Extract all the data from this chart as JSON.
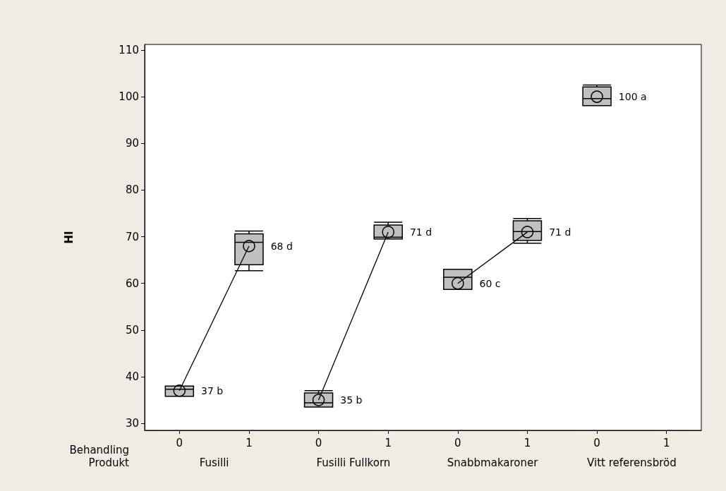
{
  "chart_data": {
    "type": "box",
    "ylabel": "HI",
    "xlabel": "Behandling",
    "categories": [
      "0",
      "1",
      "0",
      "1",
      "0",
      "1",
      "0",
      "1"
    ],
    "annotations": [
      "Produkt",
      "Fusilli",
      "Fusilli Fullkorn",
      "Snabbmakaroner",
      "Vitt referensbröd"
    ],
    "ylim": [
      28.5,
      111.2
    ],
    "yticks": [
      30,
      40,
      50,
      60,
      70,
      80,
      90,
      100,
      110
    ],
    "grid": false,
    "series": [
      {
        "color": "#c0c0c0",
        "boxes": [
          {
            "low": 35.8,
            "q1": 35.8,
            "median": 37.3,
            "q3": 38.0,
            "high": 38.0
          },
          {
            "low": 62.7,
            "q1": 64.0,
            "median": 68.8,
            "q3": 70.6,
            "high": 71.2
          },
          {
            "low": 33.5,
            "q1": 33.5,
            "median": 34.4,
            "q3": 36.5,
            "high": 37.0
          },
          {
            "low": 69.5,
            "q1": 69.5,
            "median": 69.9,
            "q3": 72.5,
            "high": 73.1
          },
          {
            "low": 58.7,
            "q1": 58.7,
            "median": 61.3,
            "q3": 63.0,
            "high": 63.0
          },
          {
            "low": 68.6,
            "q1": 69.2,
            "median": 71.1,
            "q3": 73.4,
            "high": 73.9
          },
          {
            "low": 98.1,
            "q1": 98.1,
            "median": 99.6,
            "q3": 102.1,
            "high": 102.5
          },
          null
        ]
      },
      {
        "type": "line",
        "color": "#000000",
        "marker": "circle",
        "values": [
          37,
          68,
          null,
          null,
          null,
          null,
          null,
          null
        ],
        "value_labels": [
          "37 b",
          "68 d",
          null,
          null,
          null,
          null,
          null,
          null
        ]
      },
      {
        "type": "line",
        "color": "#000000",
        "marker": "circle",
        "values": [
          null,
          null,
          35,
          71,
          null,
          null,
          null,
          null
        ],
        "value_labels": [
          null,
          null,
          "35 b",
          "71 d",
          null,
          null,
          null,
          null
        ]
      },
      {
        "type": "line",
        "color": "#000000",
        "marker": "circle",
        "values": [
          null,
          null,
          null,
          null,
          60,
          71,
          null,
          null
        ],
        "value_labels": [
          null,
          null,
          null,
          null,
          "60 c",
          "71 d",
          null,
          null
        ]
      },
      {
        "type": "line",
        "color": "#000000",
        "marker": "circle",
        "values": [
          null,
          null,
          null,
          null,
          null,
          null,
          100,
          null
        ],
        "value_labels": [
          null,
          null,
          null,
          null,
          null,
          null,
          "100 a",
          null
        ]
      }
    ]
  }
}
